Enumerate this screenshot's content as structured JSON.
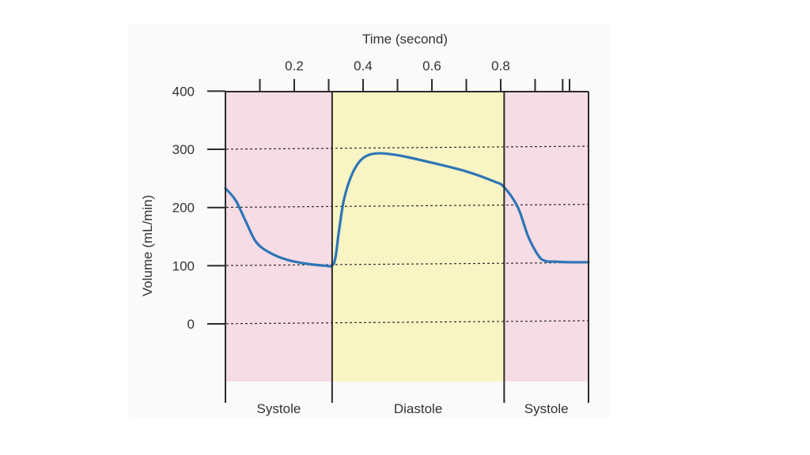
{
  "chart_data": {
    "type": "line",
    "title": "",
    "xlabel": "Time (second)",
    "ylabel": "Volume (mL/min)",
    "xlim": [
      0.0,
      1.0
    ],
    "ylim": [
      -100,
      400
    ],
    "y_ticks": [
      400,
      300,
      200,
      100,
      0
    ],
    "y_tick_labels": [
      "400",
      "300",
      "200",
      "100",
      "0"
    ],
    "x_ticks": [
      0.1,
      0.2,
      0.3,
      0.4,
      0.5,
      0.6,
      0.7,
      0.8,
      0.9,
      0.98,
      1.0
    ],
    "x_tick_labels": [
      {
        "value": 0.2,
        "label": "0.2"
      },
      {
        "value": 0.4,
        "label": "0.4"
      },
      {
        "value": 0.6,
        "label": "0.6"
      },
      {
        "value": 0.8,
        "label": "0.8"
      }
    ],
    "gridlines_y": [
      300,
      200,
      100,
      0
    ],
    "grid_style": "dashed",
    "phases": [
      {
        "label": "Systole",
        "start": 0.0,
        "end": 0.31,
        "color": "#f6dce5"
      },
      {
        "label": "Diastole",
        "start": 0.31,
        "end": 0.81,
        "color": "#f8f4c4"
      },
      {
        "label": "Systole",
        "start": 0.81,
        "end": 1.06,
        "color": "#f6dce5"
      }
    ],
    "series": [
      {
        "color": "#2e75b6",
        "points": [
          [
            0.0,
            233
          ],
          [
            0.03,
            212
          ],
          [
            0.06,
            175
          ],
          [
            0.09,
            140
          ],
          [
            0.13,
            122
          ],
          [
            0.18,
            110
          ],
          [
            0.24,
            103
          ],
          [
            0.29,
            100
          ],
          [
            0.31,
            100
          ],
          [
            0.32,
            115
          ],
          [
            0.33,
            160
          ],
          [
            0.345,
            215
          ],
          [
            0.37,
            260
          ],
          [
            0.4,
            285
          ],
          [
            0.44,
            293
          ],
          [
            0.5,
            290
          ],
          [
            0.6,
            277
          ],
          [
            0.7,
            262
          ],
          [
            0.78,
            245
          ],
          [
            0.81,
            235
          ],
          [
            0.85,
            200
          ],
          [
            0.88,
            150
          ],
          [
            0.91,
            117
          ],
          [
            0.93,
            108
          ],
          [
            0.96,
            107
          ],
          [
            1.0,
            106
          ],
          [
            1.06,
            106
          ]
        ]
      }
    ]
  }
}
